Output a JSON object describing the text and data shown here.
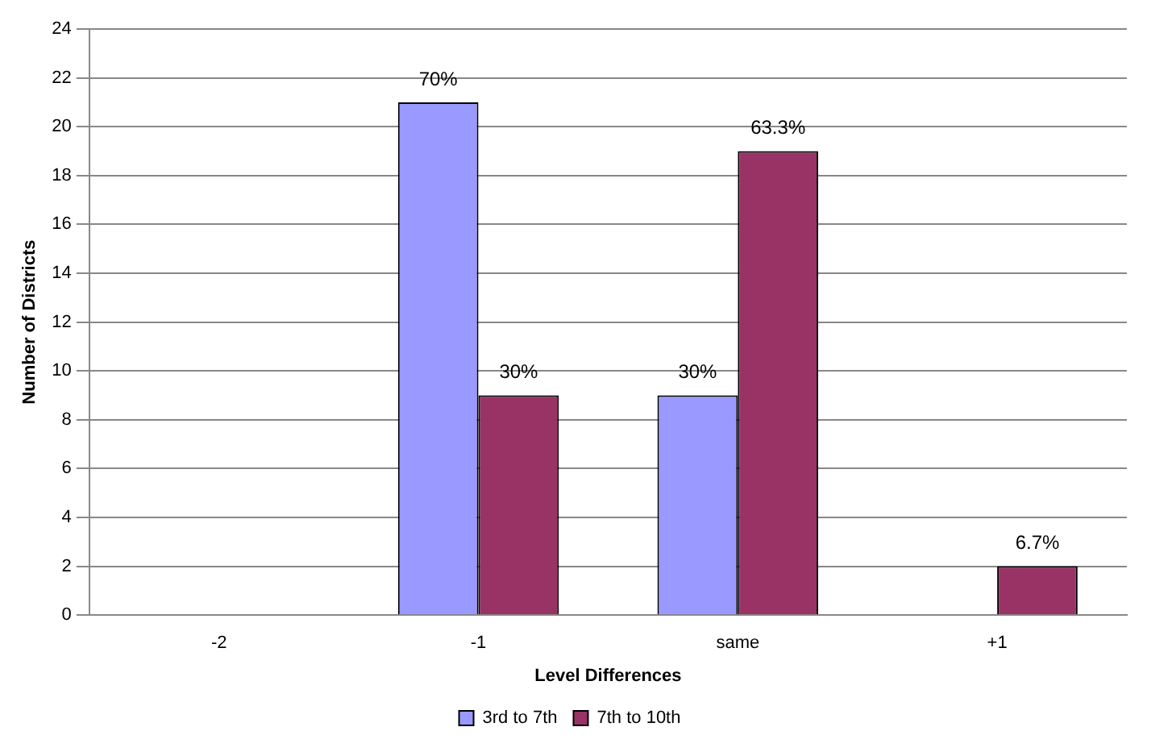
{
  "chart_data": {
    "type": "bar",
    "xlabel": "Level Differences",
    "ylabel": "Number of Districts",
    "categories": [
      "-2",
      "-1",
      "same",
      "+1"
    ],
    "series": [
      {
        "name": "3rd to 7th",
        "color": "#9999ff",
        "values": [
          0,
          21,
          9,
          0
        ]
      },
      {
        "name": "7th to 10th",
        "color": "#993366",
        "values": [
          0,
          9,
          19,
          2
        ]
      }
    ],
    "annotations": [
      {
        "text": "70%",
        "x": "-1",
        "y": 21
      },
      {
        "text": "30%",
        "x": "-1",
        "y": 9
      },
      {
        "text": "30%",
        "x": "same",
        "y": 9
      },
      {
        "text": "63.3%",
        "x": "same",
        "y": 19
      },
      {
        "text": "6.7%",
        "x": "+1",
        "y": 2
      }
    ],
    "ylim": [
      0,
      24
    ],
    "yticks": [
      0,
      2,
      4,
      6,
      8,
      10,
      12,
      14,
      16,
      18,
      20,
      22,
      24
    ],
    "grid": "y",
    "legend": "bottom"
  }
}
